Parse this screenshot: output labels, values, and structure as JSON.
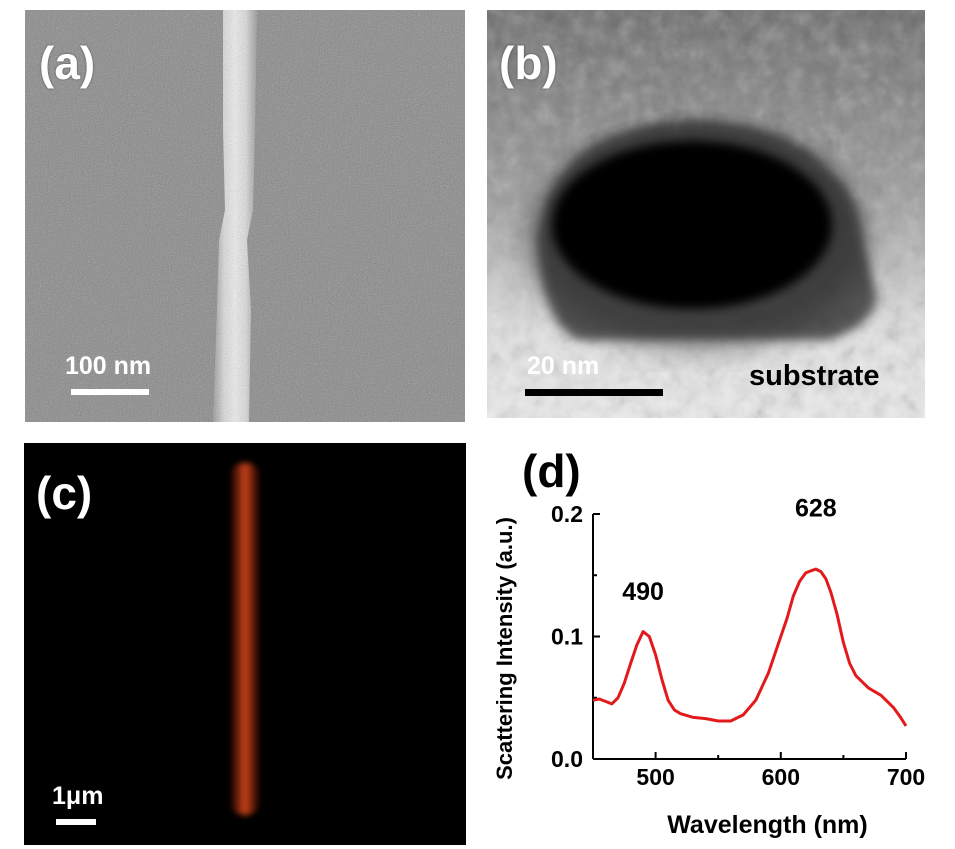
{
  "panels": {
    "a": {
      "label": "(a)",
      "scalebar_text": "100 nm"
    },
    "b": {
      "label": "(b)",
      "scalebar_text": "20 nm",
      "region_text": "substrate"
    },
    "c": {
      "label": "(c)",
      "scalebar_text": "1μm"
    },
    "d": {
      "label": "(d)"
    }
  },
  "colors": {
    "series_line": "#e31a1c",
    "nanowire_glow": "#c83a10"
  },
  "chart_data": {
    "type": "line",
    "xlabel": "Wavelength (nm)",
    "ylabel": "Scattering Intensity (a.u.)",
    "xlim": [
      450,
      700
    ],
    "ylim": [
      0.0,
      0.2
    ],
    "xticks": [
      "500",
      "600",
      "700"
    ],
    "yticks": [
      "0.0",
      "0.1",
      "0.2"
    ],
    "grid": false,
    "annotations": [
      {
        "text": "490",
        "x": 490,
        "y": 0.13
      },
      {
        "text": "628",
        "x": 628,
        "y": 0.198
      }
    ],
    "series": [
      {
        "x": [
          450,
          455,
          460,
          465,
          470,
          475,
          480,
          485,
          490,
          495,
          500,
          505,
          510,
          515,
          520,
          530,
          540,
          550,
          560,
          570,
          580,
          590,
          600,
          605,
          610,
          615,
          620,
          625,
          628,
          632,
          636,
          640,
          645,
          650,
          655,
          660,
          670,
          680,
          690,
          695,
          700
        ],
        "y": [
          0.048,
          0.049,
          0.047,
          0.045,
          0.05,
          0.062,
          0.078,
          0.093,
          0.104,
          0.1,
          0.085,
          0.065,
          0.048,
          0.04,
          0.037,
          0.034,
          0.033,
          0.031,
          0.031,
          0.036,
          0.048,
          0.07,
          0.1,
          0.115,
          0.133,
          0.145,
          0.152,
          0.154,
          0.155,
          0.153,
          0.147,
          0.136,
          0.118,
          0.095,
          0.078,
          0.068,
          0.058,
          0.052,
          0.042,
          0.035,
          0.027
        ]
      }
    ]
  }
}
